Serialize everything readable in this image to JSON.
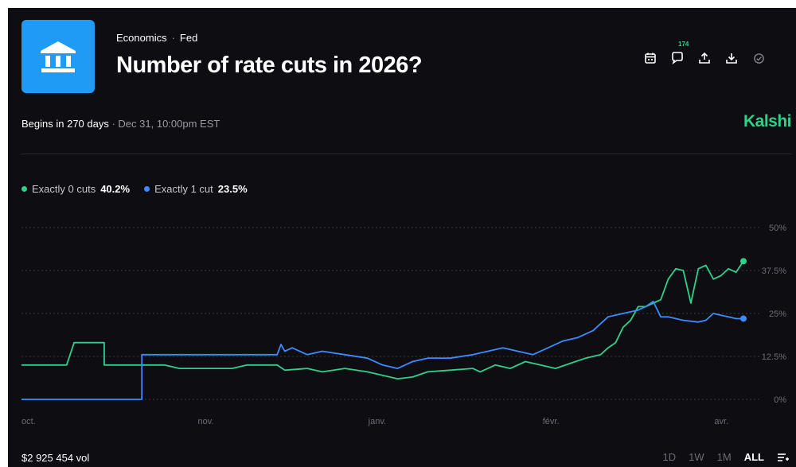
{
  "header": {
    "category": "Economics",
    "subcategory": "Fed",
    "title": "Number of rate cuts in 2026?",
    "logo_icon": "bank-icon",
    "comment_count": "174"
  },
  "toolbar": {
    "icons": [
      "calendar-icon",
      "comment-icon",
      "share-icon",
      "download-icon",
      "check-circle-icon"
    ]
  },
  "status": {
    "begins": "Begins in 270 days",
    "date": "Dec 31, 10:00pm EST"
  },
  "brand": "Kalshi",
  "legend": [
    {
      "name": "Exactly 0 cuts",
      "value": "40.2%",
      "color": "#2fd08a"
    },
    {
      "name": "Exactly 1 cut",
      "value": "23.5%",
      "color": "#3d8bff"
    }
  ],
  "footer": {
    "volume": "$2 925 454 vol",
    "ranges": [
      "1D",
      "1W",
      "1M",
      "ALL"
    ],
    "active_range": "ALL"
  },
  "chart_data": {
    "type": "line",
    "x_ticks": [
      "oct.",
      "nov.",
      "janv.",
      "févr.",
      "avr."
    ],
    "y_ticks": [
      "0%",
      "12.5%",
      "25%",
      "37.5%",
      "50%"
    ],
    "ylim": [
      0,
      50
    ],
    "grid": true,
    "series": [
      {
        "name": "Exactly 0 cuts",
        "color": "#2fd08a",
        "points": [
          [
            0,
            10
          ],
          [
            6,
            10
          ],
          [
            7,
            16.5
          ],
          [
            11,
            16.5
          ],
          [
            11,
            10
          ],
          [
            19,
            10
          ],
          [
            21,
            9
          ],
          [
            28,
            9
          ],
          [
            30,
            10
          ],
          [
            34,
            10
          ],
          [
            35,
            8.5
          ],
          [
            38,
            9
          ],
          [
            40,
            8
          ],
          [
            43,
            9
          ],
          [
            46,
            8
          ],
          [
            48,
            7
          ],
          [
            50,
            6
          ],
          [
            52,
            6.5
          ],
          [
            54,
            8
          ],
          [
            57,
            8.5
          ],
          [
            60,
            9
          ],
          [
            61,
            8
          ],
          [
            63,
            10
          ],
          [
            65,
            9
          ],
          [
            67,
            11
          ],
          [
            69,
            10
          ],
          [
            71,
            9
          ],
          [
            73,
            10.5
          ],
          [
            75,
            12
          ],
          [
            77,
            13
          ],
          [
            78,
            15
          ],
          [
            79,
            16.5
          ],
          [
            80,
            21
          ],
          [
            81,
            23
          ],
          [
            82,
            27
          ],
          [
            83,
            27
          ],
          [
            84,
            28
          ],
          [
            85,
            29
          ],
          [
            86,
            35
          ],
          [
            87,
            38
          ],
          [
            88,
            37.5
          ],
          [
            89,
            28
          ],
          [
            90,
            38
          ],
          [
            91,
            39
          ],
          [
            92,
            35
          ],
          [
            93,
            36
          ],
          [
            94,
            38
          ],
          [
            95,
            37
          ],
          [
            96,
            40.2
          ]
        ]
      },
      {
        "name": "Exactly 1 cut",
        "color": "#3d8bff",
        "points": [
          [
            0,
            0
          ],
          [
            16,
            0
          ],
          [
            16,
            13
          ],
          [
            34,
            13
          ],
          [
            34.5,
            16
          ],
          [
            35,
            14
          ],
          [
            36,
            15
          ],
          [
            38,
            13
          ],
          [
            40,
            14
          ],
          [
            43,
            13
          ],
          [
            46,
            12
          ],
          [
            48,
            10
          ],
          [
            50,
            9
          ],
          [
            52,
            11
          ],
          [
            54,
            12
          ],
          [
            57,
            12
          ],
          [
            60,
            13
          ],
          [
            62,
            14
          ],
          [
            64,
            15
          ],
          [
            66,
            14
          ],
          [
            68,
            13
          ],
          [
            70,
            15
          ],
          [
            72,
            17
          ],
          [
            74,
            18
          ],
          [
            76,
            20
          ],
          [
            78,
            24
          ],
          [
            80,
            25
          ],
          [
            82,
            26
          ],
          [
            83,
            27
          ],
          [
            84,
            28.5
          ],
          [
            85,
            24
          ],
          [
            86,
            24
          ],
          [
            88,
            23
          ],
          [
            90,
            22.5
          ],
          [
            91,
            23
          ],
          [
            92,
            25
          ],
          [
            93,
            24.5
          ],
          [
            94,
            24
          ],
          [
            95,
            23.5
          ],
          [
            96,
            23.5
          ]
        ]
      }
    ]
  }
}
